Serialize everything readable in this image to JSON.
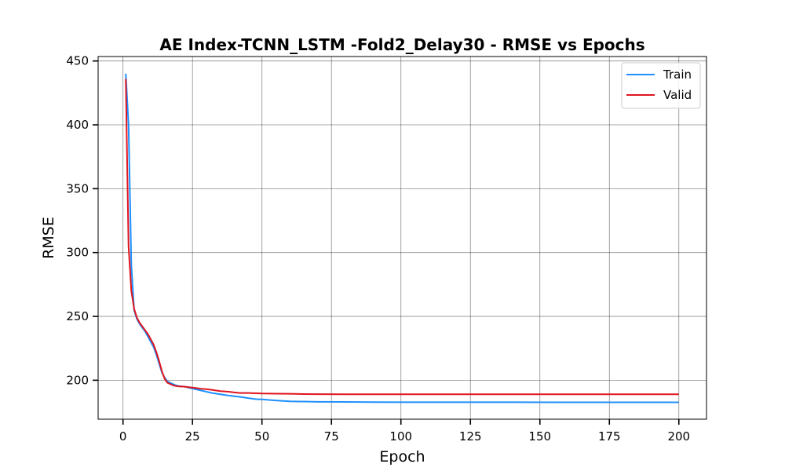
{
  "chart_data": {
    "type": "line",
    "title": "AE Index-TCNN_LSTM -Fold2_Delay30 - RMSE vs Epochs",
    "xlabel": "Epoch",
    "ylabel": "RMSE",
    "xlim": [
      -8.95,
      209.95
    ],
    "ylim": [
      169.5,
      453.5
    ],
    "xticks": [
      0,
      25,
      50,
      75,
      100,
      125,
      150,
      175,
      200
    ],
    "yticks": [
      200,
      250,
      300,
      350,
      400,
      450
    ],
    "grid": true,
    "legend_position": "top-right",
    "series": [
      {
        "name": "Train",
        "color": "#1e90ff",
        "points": [
          [
            1,
            440
          ],
          [
            2,
            400
          ],
          [
            3,
            290
          ],
          [
            4,
            255
          ],
          [
            5,
            248
          ],
          [
            6,
            244
          ],
          [
            7,
            241
          ],
          [
            8,
            238
          ],
          [
            9,
            234
          ],
          [
            10,
            230
          ],
          [
            11,
            226
          ],
          [
            12,
            220
          ],
          [
            13,
            213
          ],
          [
            14,
            206
          ],
          [
            15,
            202
          ],
          [
            16,
            199
          ],
          [
            17,
            198
          ],
          [
            18,
            197
          ],
          [
            19,
            196
          ],
          [
            20,
            195.5
          ],
          [
            22,
            195
          ],
          [
            24,
            194
          ],
          [
            26,
            193
          ],
          [
            28,
            192
          ],
          [
            30,
            191
          ],
          [
            32,
            190
          ],
          [
            35,
            189
          ],
          [
            38,
            188
          ],
          [
            40,
            187.5
          ],
          [
            42,
            187
          ],
          [
            45,
            186
          ],
          [
            48,
            185.2
          ],
          [
            50,
            185
          ],
          [
            53,
            184.5
          ],
          [
            56,
            184
          ],
          [
            60,
            183.5
          ],
          [
            65,
            183.3
          ],
          [
            70,
            183.1
          ],
          [
            80,
            183
          ],
          [
            90,
            182.9
          ],
          [
            100,
            182.8
          ],
          [
            120,
            182.8
          ],
          [
            140,
            182.8
          ],
          [
            160,
            182.7
          ],
          [
            180,
            182.7
          ],
          [
            200,
            182.7
          ]
        ]
      },
      {
        "name": "Valid",
        "color": "#e0141e",
        "points": [
          [
            1,
            436
          ],
          [
            2,
            305
          ],
          [
            3,
            270
          ],
          [
            4,
            256
          ],
          [
            5,
            249
          ],
          [
            6,
            245
          ],
          [
            7,
            242
          ],
          [
            8,
            239
          ],
          [
            9,
            236
          ],
          [
            10,
            232
          ],
          [
            11,
            228
          ],
          [
            12,
            222
          ],
          [
            13,
            215
          ],
          [
            14,
            207
          ],
          [
            15,
            201
          ],
          [
            16,
            198
          ],
          [
            17,
            197
          ],
          [
            18,
            196
          ],
          [
            19,
            195.5
          ],
          [
            20,
            195.2
          ],
          [
            22,
            195
          ],
          [
            24,
            194.5
          ],
          [
            26,
            194
          ],
          [
            28,
            193.3
          ],
          [
            30,
            193
          ],
          [
            32,
            192.5
          ],
          [
            35,
            191.5
          ],
          [
            38,
            191
          ],
          [
            40,
            190.5
          ],
          [
            42,
            190
          ],
          [
            45,
            190
          ],
          [
            48,
            189.8
          ],
          [
            50,
            189.6
          ],
          [
            55,
            189.5
          ],
          [
            60,
            189.4
          ],
          [
            65,
            189.2
          ],
          [
            70,
            189.1
          ],
          [
            80,
            189
          ],
          [
            100,
            189
          ],
          [
            150,
            189
          ],
          [
            200,
            189
          ]
        ]
      }
    ]
  }
}
